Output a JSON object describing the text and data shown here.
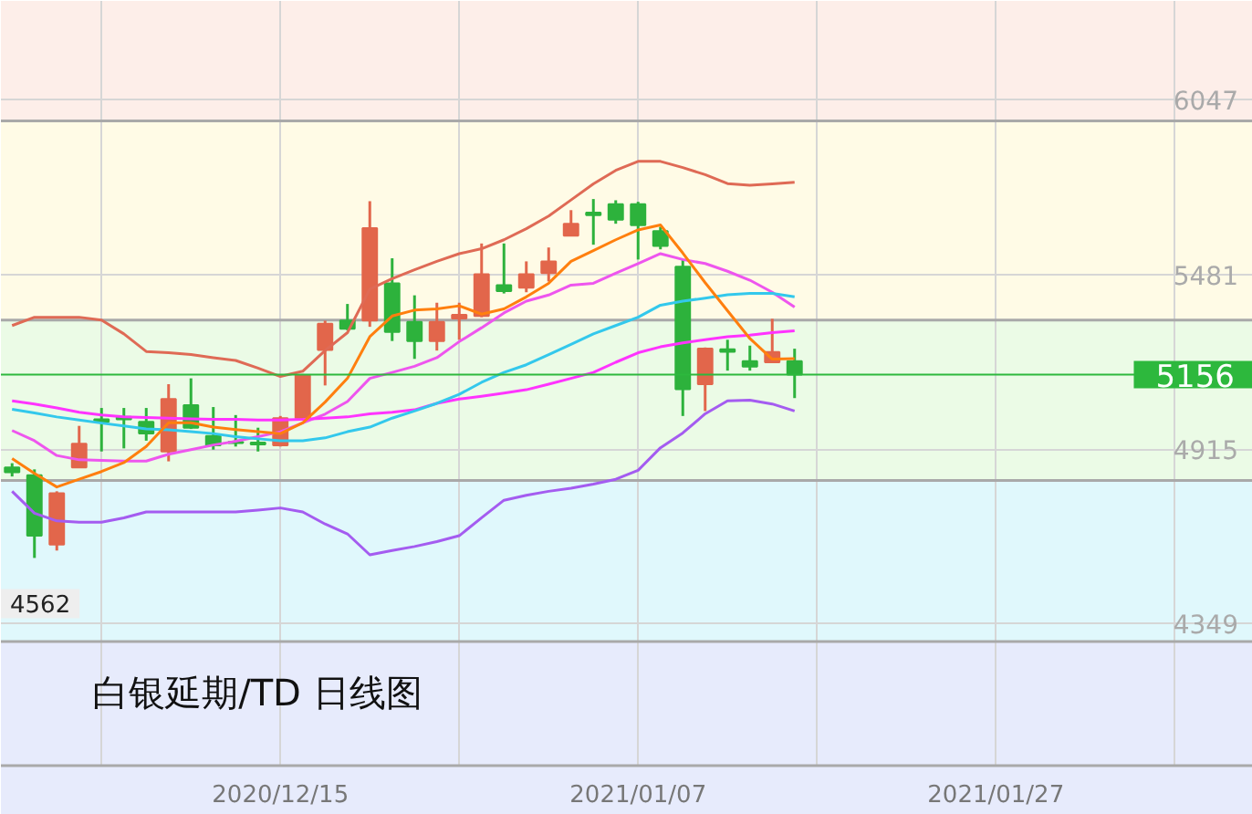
{
  "chart_data": {
    "type": "candlestick",
    "title": "白银延期/TD 日线图",
    "categories": [
      null,
      null,
      null,
      null,
      null,
      null,
      null,
      null,
      null,
      null,
      null,
      null,
      "2020/12/15",
      null,
      null,
      null,
      null,
      null,
      null,
      null,
      null,
      null,
      null,
      null,
      null,
      null,
      null,
      null,
      "2021/01/07",
      null,
      null,
      null,
      null,
      null,
      null,
      null,
      null,
      null,
      null,
      null,
      null,
      null,
      null,
      null,
      "2021/01/27",
      null,
      null,
      null,
      null,
      null,
      null,
      null,
      null,
      null,
      null,
      null
    ],
    "ohlc": [
      [
        4855,
        4869,
        4826,
        4840
      ],
      [
        4830,
        4849,
        4562,
        4634
      ],
      [
        4605,
        4778,
        4586,
        4772
      ],
      [
        4855,
        4990,
        4855,
        4932
      ],
      [
        5011,
        5048,
        4907,
        5003
      ],
      [
        5019,
        5048,
        4917,
        5011
      ],
      [
        5003,
        5048,
        4942,
        4965
      ],
      [
        4907,
        5125,
        4875,
        5077
      ],
      [
        5057,
        5144,
        4980,
        4984
      ],
      [
        4957,
        5051,
        4913,
        4927
      ],
      [
        4938,
        5025,
        4923,
        4934
      ],
      [
        4936,
        4984,
        4907,
        4930
      ],
      [
        4927,
        5022,
        4923,
        5015
      ],
      [
        5015,
        5158,
        5012,
        5154
      ],
      [
        5236,
        5331,
        5121,
        5321
      ],
      [
        5331,
        5385,
        5300,
        5305
      ],
      [
        5331,
        5718,
        5311,
        5631
      ],
      [
        5452,
        5533,
        5265,
        5294
      ],
      [
        5327,
        5413,
        5207,
        5265
      ],
      [
        5265,
        5389,
        5234,
        5327
      ],
      [
        5338,
        5389,
        5269,
        5350
      ],
      [
        5346,
        5581,
        5342,
        5481
      ],
      [
        5446,
        5581,
        5419,
        5427
      ],
      [
        5438,
        5523,
        5423,
        5481
      ],
      [
        5485,
        5568,
        5458,
        5523
      ],
      [
        5606,
        5689,
        5606,
        5645
      ],
      [
        5681,
        5725,
        5577,
        5673
      ],
      [
        5708,
        5721,
        5645,
        5658
      ],
      [
        5708,
        5716,
        5529,
        5640
      ],
      [
        5621,
        5635,
        5562,
        5573
      ],
      [
        5506,
        5529,
        5022,
        5109
      ],
      [
        5125,
        5244,
        5038,
        5240
      ],
      [
        5238,
        5269,
        5169,
        5230
      ],
      [
        5200,
        5250,
        5169,
        5182
      ],
      [
        5196,
        5337,
        5196,
        5229
      ],
      [
        5200,
        5240,
        5080,
        5156
      ],
      null,
      null,
      null,
      null,
      null,
      null,
      null,
      null,
      null,
      null,
      null,
      null,
      null,
      null,
      null,
      null,
      null,
      null,
      null,
      null
    ],
    "colors": [
      "#2db23c",
      "#2db23c",
      "#e2664b",
      "#e2664b",
      "#2db23c",
      "#2db23c",
      "#2db23c",
      "#e2664b",
      "#2db23c",
      "#2db23c",
      "#2db23c",
      "#2db23c",
      "#e2664b",
      "#e2664b",
      "#e2664b",
      "#2db23c",
      "#e2664b",
      "#2db23c",
      "#2db23c",
      "#e2664b",
      "#e2664b",
      "#e2664b",
      "#2db23c",
      "#e2664b",
      "#e2664b",
      "#e2664b",
      "#2db23c",
      "#2db23c",
      "#2db23c",
      "#2db23c",
      "#2db23c",
      "#e2664b",
      "#2db23c",
      "#2db23c",
      "#e2664b",
      "#2db23c",
      null,
      null,
      null,
      null,
      null,
      null,
      null,
      null,
      null,
      null,
      null,
      null,
      null,
      null,
      null,
      null,
      null,
      null,
      null,
      null
    ],
    "series": [
      {
        "type": "line",
        "color": "#df6a55",
        "values": [
          5315,
          5342,
          5342,
          5342,
          5333,
          5288,
          5231,
          5227,
          5221,
          5211,
          5202,
          5177,
          5150,
          5167,
          5234,
          5292,
          5433,
          5467,
          5496,
          5523,
          5548,
          5564,
          5593,
          5629,
          5670,
          5722,
          5774,
          5818,
          5847,
          5847,
          5827,
          5804,
          5775,
          5770,
          5774,
          5779,
          null,
          null,
          null,
          null,
          null,
          null,
          null,
          null,
          null,
          null,
          null,
          null,
          null,
          null,
          null,
          null,
          null,
          null,
          null,
          null
        ]
      },
      {
        "type": "line",
        "color": "#ee55ee",
        "values": [
          4975,
          4942,
          4894,
          4880,
          4878,
          4876,
          4876,
          4898,
          4913,
          4928,
          4940,
          4955,
          4971,
          5000,
          5028,
          5069,
          5144,
          5163,
          5183,
          5211,
          5263,
          5308,
          5356,
          5394,
          5414,
          5446,
          5452,
          5485,
          5516,
          5548,
          5529,
          5516,
          5491,
          5462,
          5423,
          5375,
          null,
          null,
          null,
          null,
          null,
          null,
          null,
          null,
          null,
          null,
          null,
          null,
          null,
          null,
          null,
          null,
          null,
          null,
          null,
          null
        ]
      },
      {
        "type": "line",
        "color": "#ff33ff",
        "values": [
          5071,
          5061,
          5048,
          5034,
          5025,
          5019,
          5017,
          5015,
          5013,
          5011,
          5011,
          5009,
          5009,
          5011,
          5015,
          5019,
          5029,
          5034,
          5042,
          5063,
          5077,
          5086,
          5096,
          5107,
          5125,
          5144,
          5163,
          5196,
          5227,
          5246,
          5259,
          5269,
          5279,
          5284,
          5292,
          5298,
          null,
          null,
          null,
          null,
          null,
          null,
          null,
          null,
          null,
          null,
          null,
          null,
          null,
          null,
          null,
          null,
          null,
          null,
          null,
          null
        ]
      },
      {
        "type": "line",
        "color": "#33c8ec",
        "values": [
          5044,
          5032,
          5019,
          5009,
          4999,
          4990,
          4980,
          4977,
          4971,
          4965,
          4955,
          4948,
          4942,
          4942,
          4951,
          4971,
          4986,
          5015,
          5038,
          5063,
          5092,
          5131,
          5163,
          5188,
          5221,
          5254,
          5288,
          5315,
          5342,
          5381,
          5394,
          5404,
          5415,
          5419,
          5419,
          5408,
          null,
          null,
          null,
          null,
          null,
          null,
          null,
          null,
          null,
          null,
          null,
          null,
          null,
          null,
          null,
          null,
          null,
          null,
          null,
          null
        ]
      },
      {
        "type": "line",
        "color": "#a45cf0",
        "values": [
          4778,
          4707,
          4682,
          4678,
          4678,
          4692,
          4711,
          4711,
          4711,
          4711,
          4711,
          4717,
          4724,
          4711,
          4672,
          4640,
          4572,
          4586,
          4599,
          4615,
          4634,
          4692,
          4749,
          4765,
          4778,
          4788,
          4801,
          4817,
          4846,
          4919,
          4967,
          5029,
          5071,
          5073,
          5061,
          5038,
          null,
          null,
          null,
          null,
          null,
          null,
          null,
          null,
          null,
          null,
          null,
          null,
          null,
          null,
          null,
          null,
          null,
          null,
          null,
          null
        ]
      },
      {
        "type": "line",
        "color": "#ff7f0e",
        "values": [
          4884,
          4836,
          4792,
          4817,
          4842,
          4871,
          4923,
          5000,
          5000,
          4986,
          4978,
          4971,
          4965,
          5000,
          5067,
          5144,
          5279,
          5346,
          5365,
          5369,
          5379,
          5352,
          5369,
          5408,
          5452,
          5523,
          5558,
          5593,
          5625,
          5641,
          5550,
          5454,
          5363,
          5273,
          5206,
          5208,
          null,
          null,
          null,
          null,
          null,
          null,
          null,
          null,
          null,
          null,
          null,
          null,
          null,
          null,
          null,
          null,
          null,
          null,
          null,
          null
        ]
      }
    ],
    "ylim": [
      3889,
      6367
    ],
    "yticks": [
      6047,
      5481,
      4915,
      4349
    ],
    "grid": true,
    "bands": [
      {
        "axis": "y",
        "from": 5978,
        "to": 6367,
        "color": "#fdeee9"
      },
      {
        "axis": "y",
        "from": 5333,
        "to": 5978,
        "color": "#fffbe6"
      },
      {
        "axis": "y",
        "from": 4813,
        "to": 5333,
        "color": "#ebfbe6"
      },
      {
        "axis": "y",
        "from": 4291,
        "to": 4813,
        "color": "#e0f8fc"
      },
      {
        "axis": "y",
        "from": 3889,
        "to": 4291,
        "color": "#e7ebfc"
      }
    ],
    "ref_lines": [
      {
        "axis": "y",
        "value": 5156,
        "label": "5156",
        "color": "#2db83d"
      }
    ],
    "annotations": [
      {
        "text": "4562",
        "y": 4562
      }
    ]
  }
}
